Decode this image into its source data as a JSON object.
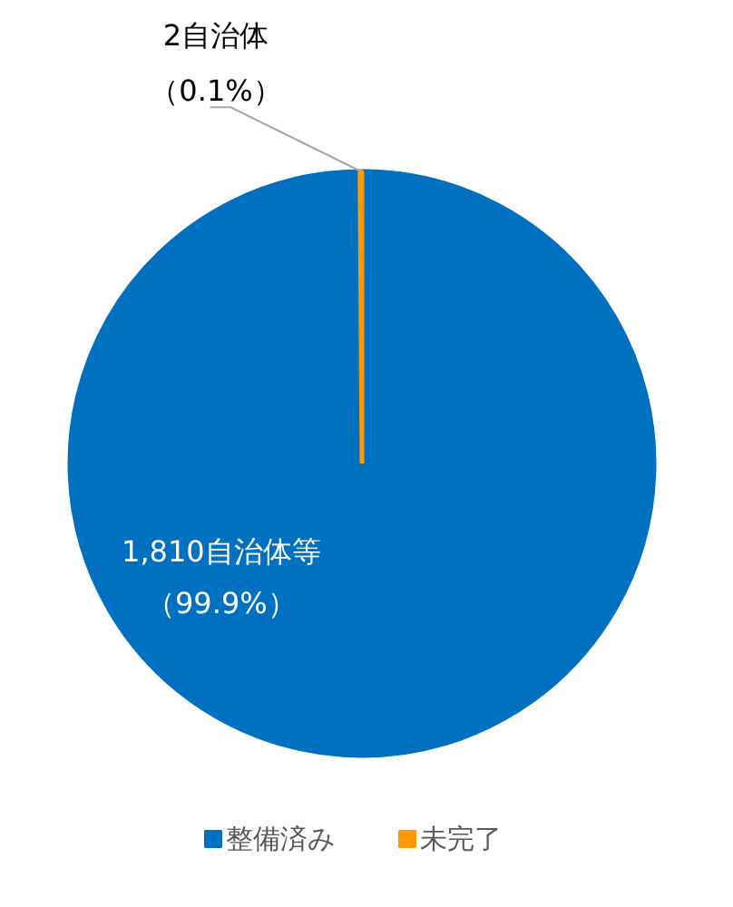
{
  "chart_data": {
    "type": "pie",
    "categories": [
      "整備済み",
      "未完了"
    ],
    "values": [
      1810,
      2
    ],
    "colors": [
      "#0070c0",
      "#ff9900"
    ],
    "value_labels": [
      "1,810自治体等（99.9%）",
      "2自治体（0.1%）"
    ],
    "legend": "bottom"
  }
}
